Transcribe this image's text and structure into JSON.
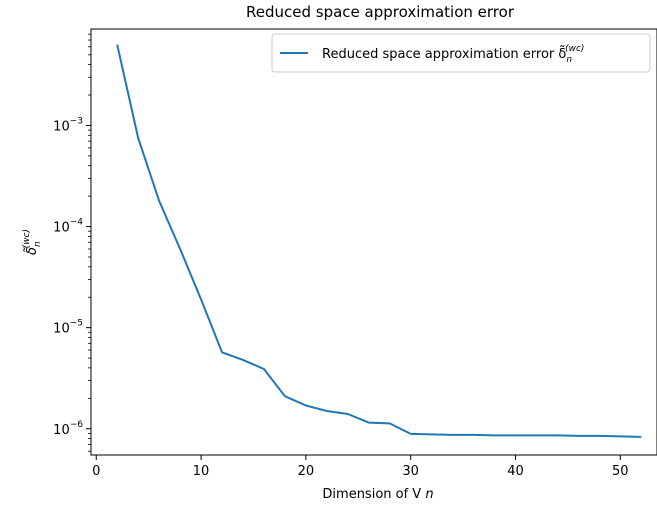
{
  "chart_data": {
    "type": "line",
    "title": "Reduced space approximation error",
    "xlabel": "Dimension of V",
    "xlabel_sub": "n",
    "ylabel": "δ̃",
    "ylabel_sub": "n",
    "ylabel_sup": "(wc)",
    "yscale": "log",
    "xlim": [
      -0.5,
      53.5
    ],
    "ylim": [
      5.5e-07,
      0.009
    ],
    "grid": false,
    "legend_position": "top-right",
    "x_ticks": [
      0,
      10,
      20,
      30,
      40,
      50
    ],
    "y_ticks": [
      {
        "value": 1e-06,
        "base": "10",
        "exp": "−6"
      },
      {
        "value": 1e-05,
        "base": "10",
        "exp": "−5"
      },
      {
        "value": 0.0001,
        "base": "10",
        "exp": "−4"
      },
      {
        "value": 0.001,
        "base": "10",
        "exp": "−3"
      }
    ],
    "series": [
      {
        "name": "Reduced space approximation error δ̃",
        "name_sub": "n",
        "name_sup": "(wc)",
        "color": "#1f77b4",
        "x": [
          2,
          4,
          6,
          8,
          10,
          12,
          14,
          16,
          18,
          20,
          22,
          24,
          26,
          28,
          30,
          32,
          34,
          36,
          38,
          40,
          42,
          44,
          46,
          48,
          50,
          52
        ],
        "y": [
          0.0063,
          0.00075,
          0.00018,
          6e-05,
          1.9e-05,
          5.7e-06,
          4.8e-06,
          3.9e-06,
          2.1e-06,
          1.7e-06,
          1.5e-06,
          1.4e-06,
          1.15e-06,
          1.13e-06,
          8.9e-07,
          8.8e-07,
          8.7e-07,
          8.7e-07,
          8.6e-07,
          8.6e-07,
          8.6e-07,
          8.6e-07,
          8.5e-07,
          8.5e-07,
          8.4e-07,
          8.3e-07
        ]
      }
    ]
  }
}
